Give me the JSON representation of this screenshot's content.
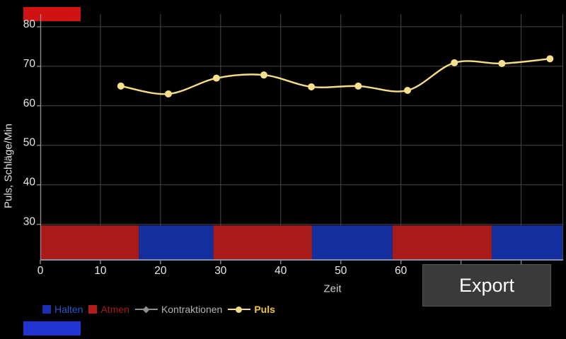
{
  "app": {
    "background": "#000000"
  },
  "corner_markers": {
    "top_red_chip": {
      "color": "#d11212"
    },
    "bottom_blue_chip": {
      "color": "#2334d4"
    }
  },
  "chart_data": {
    "type": "line",
    "title": "",
    "xlabel": "Zeit",
    "ylabel": "Puls, Schläge/Min",
    "xlim": [
      0,
      87
    ],
    "ylim": [
      21,
      83.2
    ],
    "x_ticks": [
      0,
      10,
      20,
      30,
      40,
      50,
      60,
      70,
      80
    ],
    "y_ticks": [
      30,
      40,
      50,
      60,
      70,
      80
    ],
    "grid": true,
    "legend_position": "bottom",
    "series": [
      {
        "name": "Puls",
        "marker": "circle",
        "color": "#f6dc85",
        "marker_fill": "#f8e08f",
        "x": [
          13.4,
          21.3,
          29.3,
          37.2,
          45.1,
          52.9,
          61.1,
          68.9,
          76.8,
          84.8
        ],
        "y": [
          65.0,
          63.0,
          67.0,
          67.8,
          64.8,
          65.0,
          63.9,
          70.9,
          70.7,
          71.9
        ]
      },
      {
        "name": "Kontraktionen",
        "marker": "diamond",
        "color": "#8f8f8f",
        "marker_fill": "#8f8f8f",
        "x": [],
        "y": []
      }
    ],
    "phase_bands": {
      "band_top_value": 30,
      "segments": [
        {
          "label": "Atmen",
          "start": 0,
          "end": 16.4
        },
        {
          "label": "Halten",
          "start": 16.4,
          "end": 28.8
        },
        {
          "label": "Atmen",
          "start": 28.8,
          "end": 45.2
        },
        {
          "label": "Halten",
          "start": 45.2,
          "end": 58.6
        },
        {
          "label": "Atmen",
          "start": 58.6,
          "end": 75.1
        },
        {
          "label": "Halten",
          "start": 75.1,
          "end": 87
        }
      ],
      "colors": {
        "Atmen": "#a81b18",
        "Halten": "#152e9e"
      }
    },
    "style": {
      "grid_color": "#474747",
      "spine_color": "#8a8a8a",
      "bottom_axis_color": "#8f9cba",
      "tick_label_color": "#e8e8e8"
    }
  },
  "legend": {
    "items": [
      {
        "label": "Halten",
        "swatch": "square",
        "color": "#1b2fb0",
        "text_color": "#2f54cc",
        "bold": false
      },
      {
        "label": "Atmen",
        "swatch": "square",
        "color": "#b21d1a",
        "text_color": "#a31717",
        "bold": false
      },
      {
        "label": "Kontraktionen",
        "swatch": "line-diamond",
        "color": "#8f8f8f",
        "text_color": "#b5b5b5",
        "bold": false
      },
      {
        "label": "Puls",
        "swatch": "line-circle",
        "color": "#f6dc85",
        "text_color": "#eec54a",
        "bold": true
      }
    ]
  },
  "export_button": {
    "label": "Export",
    "bg": "#3a3a3a",
    "text_color": "#ffffff"
  }
}
